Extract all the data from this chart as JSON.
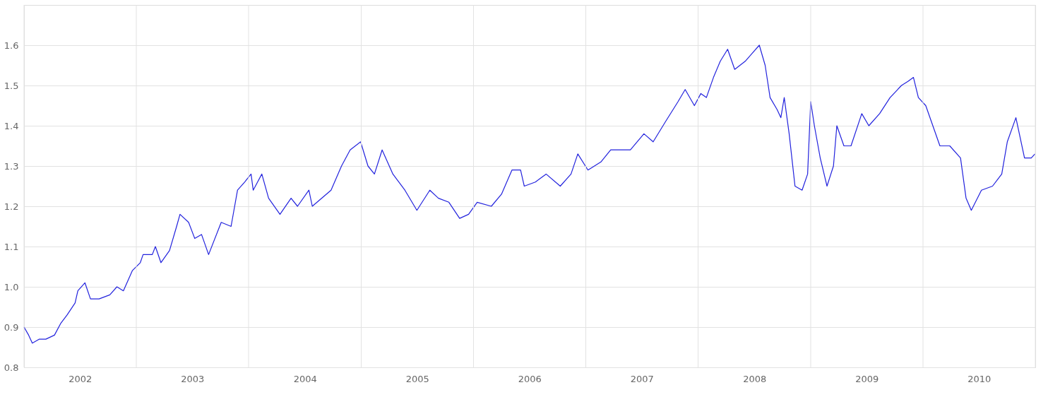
{
  "chart_data": {
    "type": "line",
    "grid": true,
    "legend": false,
    "marker": "none",
    "line_style": "solid",
    "xlim": [
      "2002-01-01",
      "2011-01-01"
    ],
    "xticks": [
      {
        "value": "2002-01-01",
        "label": null
      },
      {
        "value": "2002-07-02",
        "label": "2002"
      },
      {
        "value": "2003-01-01",
        "label": null
      },
      {
        "value": "2003-07-02",
        "label": "2003"
      },
      {
        "value": "2004-01-01",
        "label": null
      },
      {
        "value": "2004-07-02",
        "label": "2004"
      },
      {
        "value": "2005-01-01",
        "label": null
      },
      {
        "value": "2005-07-02",
        "label": "2005"
      },
      {
        "value": "2006-01-01",
        "label": null
      },
      {
        "value": "2006-07-02",
        "label": "2006"
      },
      {
        "value": "2007-01-01",
        "label": null
      },
      {
        "value": "2007-07-02",
        "label": "2007"
      },
      {
        "value": "2008-01-01",
        "label": null
      },
      {
        "value": "2008-07-02",
        "label": "2008"
      },
      {
        "value": "2009-01-01",
        "label": null
      },
      {
        "value": "2009-07-02",
        "label": "2009"
      },
      {
        "value": "2010-01-01",
        "label": null
      },
      {
        "value": "2010-07-02",
        "label": "2010"
      },
      {
        "value": "2011-01-01",
        "label": null
      }
    ],
    "ylim": [
      0.8,
      1.7
    ],
    "yticks": [
      0.8,
      0.9,
      {
        "value": 1,
        "label": "1.0"
      },
      1.1,
      1.2,
      1.3,
      1.4,
      1.5,
      1.6
    ],
    "series": [
      {
        "color": "#2222dd",
        "x": [
          "2002-01-01",
          "2002-01-16",
          "2002-01-28",
          "2002-02-20",
          "2002-03-13",
          "2002-04-10",
          "2002-05-01",
          "2002-05-21",
          "2002-06-16",
          "2002-06-25",
          "2002-07-18",
          "2002-08-05",
          "2002-09-02",
          "2002-10-07",
          "2002-10-30",
          "2002-11-20",
          "2002-12-19",
          "2003-01-14",
          "2003-01-23",
          "2003-02-22",
          "2003-03-04",
          "2003-03-22",
          "2003-04-19",
          "2003-05-12",
          "2003-05-23",
          "2003-06-20",
          "2003-07-10",
          "2003-08-01",
          "2003-08-24",
          "2003-10-04",
          "2003-11-05",
          "2003-11-26",
          "2003-12-19",
          "2004-01-09",
          "2004-01-16",
          "2004-02-13",
          "2004-03-06",
          "2004-04-12",
          "2004-05-18",
          "2004-06-08",
          "2004-07-15",
          "2004-07-26",
          "2004-09-25",
          "2004-10-29",
          "2004-11-26",
          "2004-12-30",
          "2005-01-23",
          "2005-02-13",
          "2005-03-10",
          "2005-04-14",
          "2005-05-23",
          "2005-07-01",
          "2005-08-12",
          "2005-09-09",
          "2005-10-13",
          "2005-11-17",
          "2005-12-16",
          "2006-01-13",
          "2006-02-28",
          "2006-04-02",
          "2006-05-06",
          "2006-06-03",
          "2006-06-15",
          "2006-07-21",
          "2006-08-25",
          "2006-10-10",
          "2006-11-14",
          "2006-12-06",
          "2007-01-08",
          "2007-02-19",
          "2007-03-23",
          "2007-04-22",
          "2007-05-26",
          "2007-07-09",
          "2007-08-08",
          "2007-09-17",
          "2007-10-28",
          "2007-11-20",
          "2007-12-20",
          "2008-01-10",
          "2008-01-28",
          "2008-02-20",
          "2008-03-13",
          "2008-04-06",
          "2008-04-29",
          "2008-06-02",
          "2008-06-25",
          "2008-07-18",
          "2008-08-06",
          "2008-08-22",
          "2008-09-14",
          "2008-09-26",
          "2008-10-07",
          "2008-10-23",
          "2008-11-11",
          "2008-12-04",
          "2008-12-22",
          "2009-01-01",
          "2009-01-13",
          "2009-02-01",
          "2009-02-23",
          "2009-03-16",
          "2009-03-27",
          "2009-04-19",
          "2009-05-12",
          "2009-06-16",
          "2009-07-09",
          "2009-08-13",
          "2009-09-16",
          "2009-10-23",
          "2009-11-13",
          "2009-12-01",
          "2009-12-17",
          "2010-01-10",
          "2010-02-02",
          "2010-02-25",
          "2010-03-29",
          "2010-05-03",
          "2010-05-21",
          "2010-06-07",
          "2010-07-10",
          "2010-08-15",
          "2010-09-14",
          "2010-10-02",
          "2010-10-30",
          "2010-11-27",
          "2010-12-19",
          "2010-12-31"
        ],
        "values": [
          0.9,
          0.88,
          0.86,
          0.87,
          0.87,
          0.88,
          0.91,
          0.93,
          0.96,
          0.99,
          1.01,
          0.97,
          0.97,
          0.98,
          1.0,
          0.99,
          1.04,
          1.06,
          1.08,
          1.08,
          1.1,
          1.06,
          1.09,
          1.15,
          1.18,
          1.16,
          1.12,
          1.13,
          1.08,
          1.16,
          1.15,
          1.24,
          1.26,
          1.28,
          1.24,
          1.28,
          1.22,
          1.18,
          1.22,
          1.2,
          1.24,
          1.2,
          1.24,
          1.3,
          1.34,
          1.36,
          1.3,
          1.28,
          1.34,
          1.28,
          1.24,
          1.19,
          1.24,
          1.22,
          1.21,
          1.17,
          1.18,
          1.21,
          1.2,
          1.23,
          1.29,
          1.29,
          1.25,
          1.26,
          1.28,
          1.25,
          1.28,
          1.33,
          1.29,
          1.31,
          1.34,
          1.34,
          1.34,
          1.38,
          1.36,
          1.41,
          1.46,
          1.49,
          1.45,
          1.48,
          1.47,
          1.52,
          1.56,
          1.59,
          1.54,
          1.56,
          1.58,
          1.6,
          1.55,
          1.47,
          1.44,
          1.42,
          1.47,
          1.38,
          1.25,
          1.24,
          1.28,
          1.46,
          1.4,
          1.32,
          1.25,
          1.3,
          1.4,
          1.35,
          1.35,
          1.43,
          1.4,
          1.43,
          1.47,
          1.5,
          1.51,
          1.52,
          1.47,
          1.45,
          1.4,
          1.35,
          1.35,
          1.32,
          1.22,
          1.19,
          1.24,
          1.25,
          1.28,
          1.36,
          1.42,
          1.32,
          1.32,
          1.33
        ]
      }
    ]
  }
}
